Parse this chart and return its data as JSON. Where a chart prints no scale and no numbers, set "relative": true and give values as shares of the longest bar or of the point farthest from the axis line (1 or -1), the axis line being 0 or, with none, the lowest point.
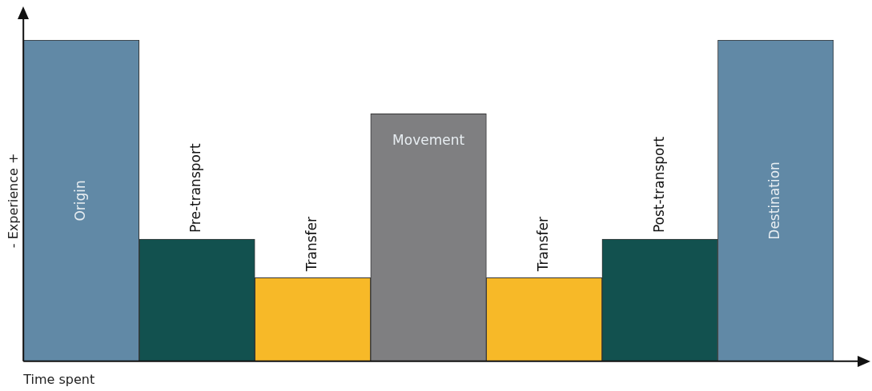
{
  "chart_data": {
    "type": "bar",
    "relative": true,
    "xlabel": "Time spent",
    "ylabel": "- Experience +",
    "categories": [
      "Origin",
      "Pre-transport",
      "Transfer",
      "Movement",
      "Transfer",
      "Post-transport",
      "Destination"
    ],
    "values": [
      1,
      0.38,
      0.26,
      0.77,
      0.26,
      0.38,
      1
    ],
    "colors": [
      "#6189a6",
      "#12514f",
      "#f7b928",
      "#7f7f81",
      "#f7b928",
      "#12514f",
      "#6189a6"
    ],
    "grid": false,
    "legend": false
  }
}
